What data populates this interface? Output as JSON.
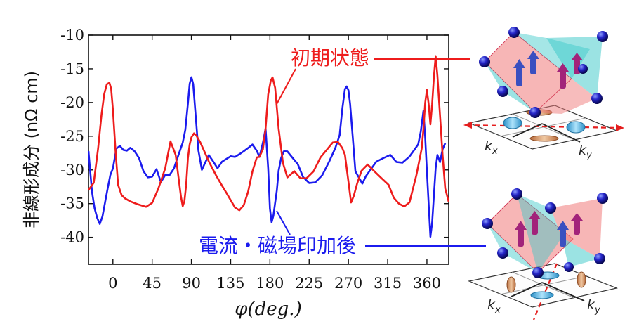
{
  "chart_data": {
    "type": "line",
    "xlabel": "φ(deg.)",
    "ylabel": "非線形成分 (nΩ cm)",
    "xlim": [
      -28,
      385
    ],
    "ylim": [
      -44,
      -10
    ],
    "xticks": [
      0,
      45,
      90,
      135,
      180,
      225,
      270,
      315,
      360
    ],
    "yticks": [
      -10,
      -15,
      -20,
      -25,
      -30,
      -35,
      -40
    ],
    "grid": false,
    "series": [
      {
        "name": "初期状態",
        "color": "#ee1c1c",
        "x": [
          -28,
          -22,
          -17,
          -13,
          -10,
          -7,
          -4,
          -2,
          0,
          3,
          6,
          10,
          14,
          20,
          28,
          38,
          45,
          52,
          60,
          66,
          72,
          75,
          78,
          80,
          82,
          84,
          86,
          88,
          90,
          93,
          96,
          100,
          105,
          110,
          118,
          125,
          130,
          135,
          140,
          145,
          150,
          155,
          160,
          165,
          168,
          172,
          175,
          178,
          181,
          183,
          186,
          190,
          195,
          200,
          208,
          215,
          222,
          230,
          238,
          245,
          252,
          258,
          263,
          266,
          270,
          273,
          276,
          280,
          285,
          292,
          300,
          308,
          316,
          322,
          328,
          334,
          340,
          344,
          348,
          351,
          354,
          356,
          358,
          360,
          362,
          364,
          366,
          368,
          370,
          372,
          375,
          378,
          381,
          385
        ],
        "y": [
          -33,
          -32,
          -27,
          -22,
          -19,
          -17.5,
          -17.2,
          -18,
          -21,
          -27,
          -32,
          -33.5,
          -34,
          -34.5,
          -35,
          -35.5,
          -35,
          -33,
          -30,
          -26,
          -28,
          -31,
          -34,
          -35.3,
          -34.5,
          -32,
          -28,
          -26,
          -25,
          -24.5,
          -25,
          -26,
          -27.5,
          -29,
          -31,
          -32.5,
          -33.5,
          -34.5,
          -35.5,
          -35.8,
          -35,
          -33,
          -30,
          -28,
          -28,
          -27,
          -24,
          -19,
          -17,
          -16.5,
          -18,
          -24,
          -29,
          -31,
          -30,
          -31,
          -31,
          -30,
          -28,
          -27,
          -26,
          -26,
          -27,
          -28,
          -32,
          -35,
          -34,
          -32,
          -30,
          -29,
          -30,
          -31,
          -32,
          -34,
          -35,
          -35.5,
          -35,
          -33,
          -31,
          -29,
          -27,
          -24,
          -20,
          -18,
          -20,
          -23,
          -20,
          -16,
          -13,
          -16,
          -22,
          -28,
          -33,
          -35
        ]
      },
      {
        "name": "電流・磁場印加後",
        "color": "#1b1bee",
        "x": [
          -28,
          -26,
          -24,
          -21,
          -18,
          -15,
          -12,
          -9,
          -6,
          -3,
          0,
          4,
          8,
          12,
          16,
          20,
          25,
          30,
          35,
          40,
          45,
          50,
          55,
          60,
          65,
          70,
          75,
          80,
          83,
          86,
          88,
          90,
          92,
          95,
          98,
          102,
          106,
          110,
          115,
          120,
          125,
          130,
          135,
          140,
          145,
          150,
          155,
          160,
          165,
          168,
          172,
          175,
          178,
          180,
          182,
          184,
          186,
          188,
          190,
          193,
          196,
          200,
          206,
          212,
          218,
          225,
          232,
          240,
          248,
          255,
          260,
          263,
          266,
          268,
          270,
          272,
          275,
          278,
          282,
          286,
          290,
          296,
          302,
          310,
          318,
          325,
          332,
          340,
          345,
          350,
          353,
          356,
          358,
          360,
          362,
          364,
          366,
          368,
          370,
          372,
          375,
          378,
          381
        ],
        "y": [
          -27,
          -30,
          -33,
          -35.5,
          -37,
          -38,
          -37,
          -35,
          -33,
          -31,
          -30,
          -27,
          -26.5,
          -27,
          -27,
          -26.5,
          -27,
          -28,
          -30,
          -31,
          -31,
          -30,
          -32,
          -31,
          -31,
          -30,
          -28,
          -26,
          -24,
          -20,
          -17,
          -16,
          -17,
          -22,
          -27,
          -30,
          -29,
          -28,
          -29,
          -30,
          -29,
          -28.5,
          -28,
          -28,
          -27.5,
          -27,
          -26.5,
          -26,
          -27,
          -28,
          -26,
          -24,
          -30,
          -36,
          -38,
          -37,
          -35,
          -33,
          -30,
          -28,
          -27,
          -27,
          -28,
          -29,
          -31,
          -32,
          -32,
          -31,
          -29,
          -27,
          -25,
          -21,
          -18,
          -17.5,
          -18,
          -20,
          -25,
          -30,
          -31,
          -32,
          -31,
          -30,
          -29,
          -28.5,
          -28,
          -29,
          -29,
          -28,
          -27,
          -26,
          -24,
          -21,
          -25,
          -30,
          -35,
          -40,
          -38,
          -34,
          -30,
          -28,
          -29,
          -27,
          -26
        ]
      }
    ],
    "annotations": [
      {
        "text": "初期状態",
        "color": "#ee1c1c"
      },
      {
        "text": "電流・磁場印加後",
        "color": "#1b1bee"
      }
    ]
  },
  "illustrations": {
    "top_axis_labels": [
      "k",
      "x",
      "k",
      "y"
    ],
    "bottom_axis_labels": [
      "k",
      "x",
      "k",
      "y"
    ]
  }
}
